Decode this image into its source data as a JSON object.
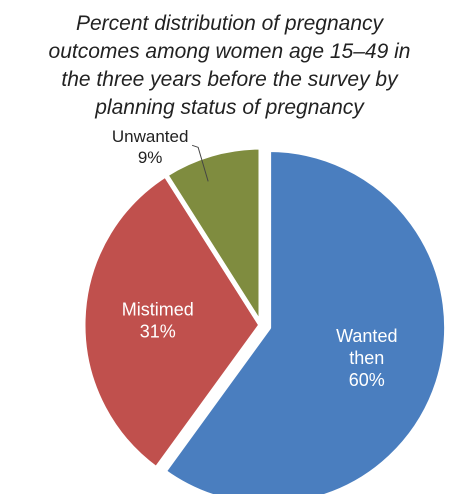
{
  "title_lines": [
    "Percent distribution of pregnancy",
    "outcomes among women age 15–49 in",
    "the three years before the survey by",
    "planning status of pregnancy"
  ],
  "chart_data": {
    "type": "pie",
    "title": "Percent distribution of pregnancy outcomes among women age 15–49 in the three years before the survey by planning status of pregnancy",
    "slices": [
      {
        "name_lines": [
          "Wanted",
          "then"
        ],
        "value": 60,
        "label": "60%",
        "color": "#4a7ebf",
        "exploded": true,
        "label_position": "inside"
      },
      {
        "name_lines": [
          "Mistimed"
        ],
        "value": 31,
        "label": "31%",
        "color": "#c0504d",
        "exploded": false,
        "label_position": "inside"
      },
      {
        "name_lines": [
          "Unwanted"
        ],
        "value": 9,
        "label": "9%",
        "color": "#7f8c3f",
        "exploded": false,
        "label_position": "outside"
      }
    ],
    "legend": "none"
  }
}
